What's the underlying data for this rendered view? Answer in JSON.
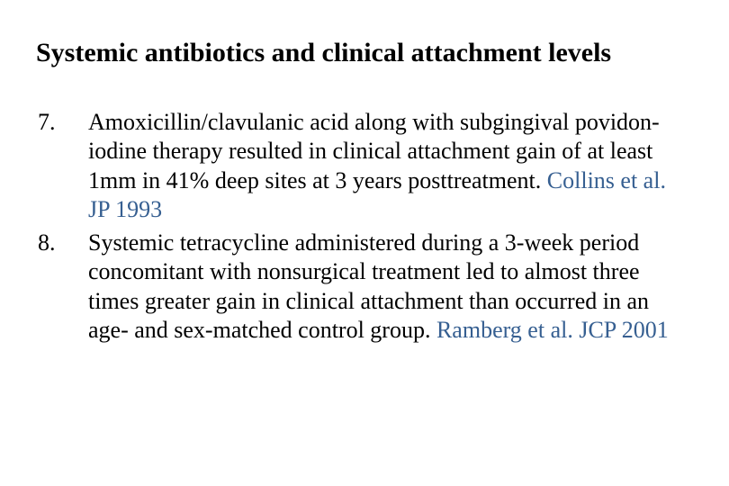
{
  "title": "Systemic antibiotics and clinical attachment levels",
  "items": [
    {
      "number": "7.",
      "text": "Amoxicillin/clavulanic acid along with subgingival povidon-iodine therapy resulted in clinical attachment gain of at least 1mm in 41% deep sites at 3 years posttreatment. ",
      "citation": "Collins et al. JP 1993"
    },
    {
      "number": "8.",
      "text": "Systemic tetracycline administered during a 3-week period concomitant with nonsurgical treatment led to almost three times greater gain in clinical attachment than occurred in an age- and sex-matched control group. ",
      "citation": "Ramberg et al. JCP 2001"
    }
  ],
  "colors": {
    "citation": "#365f91",
    "text": "#000000",
    "background": "#ffffff"
  },
  "typography": {
    "family": "Times New Roman",
    "title_size_pt": 30,
    "body_size_pt": 26,
    "title_weight": "bold",
    "body_weight": "normal"
  }
}
